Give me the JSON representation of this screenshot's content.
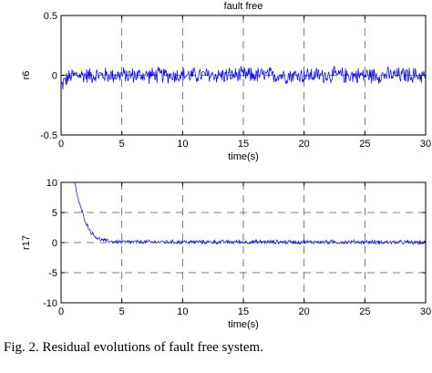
{
  "caption": "Fig. 2. Residual evolutions of fault free system.",
  "chart_data": [
    {
      "type": "line",
      "title": "fault free",
      "xlabel": "time(s)",
      "ylabel": "r6",
      "xlim": [
        0,
        30
      ],
      "ylim": [
        -0.5,
        0.5
      ],
      "xticks": [
        0,
        5,
        10,
        15,
        20,
        25,
        30
      ],
      "yticks": [
        -0.5,
        0,
        0.5
      ],
      "ytick_labels": [
        "-0.5",
        "0",
        "0.5"
      ],
      "grid": true,
      "color": "#0000ff",
      "series": [
        {
          "x": [
            0,
            0.2,
            0.5,
            1,
            2,
            5,
            10,
            15,
            20,
            25,
            30
          ],
          "y": [
            -0.1,
            -0.06,
            -0.03,
            0,
            0,
            0,
            0,
            0,
            0,
            0,
            0
          ],
          "noise_amplitude": 0.08
        }
      ]
    },
    {
      "type": "line",
      "title": "",
      "xlabel": "time(s)",
      "ylabel": "r17",
      "xlim": [
        0,
        30
      ],
      "ylim": [
        -10,
        10
      ],
      "xticks": [
        0,
        5,
        10,
        15,
        20,
        25,
        30
      ],
      "yticks": [
        -10,
        -5,
        0,
        5,
        10
      ],
      "ytick_labels": [
        "-10",
        "-5",
        "0",
        "5",
        "10"
      ],
      "grid": true,
      "color": "#0000ff",
      "series": [
        {
          "x": [
            1.1,
            1.5,
            2,
            2.5,
            3,
            3.5,
            4,
            5,
            10,
            15,
            20,
            25,
            30
          ],
          "y": [
            10,
            6.5,
            3.5,
            1.6,
            0.7,
            0.35,
            0.2,
            0.1,
            0.1,
            0.1,
            0.1,
            0.1,
            0
          ],
          "noise_amplitude": 0.4
        }
      ]
    }
  ]
}
